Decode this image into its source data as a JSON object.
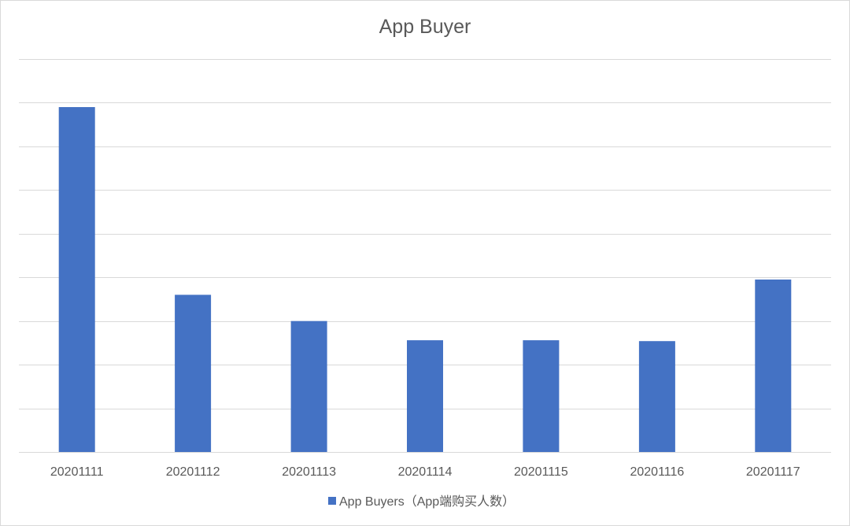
{
  "chart_data": {
    "type": "bar",
    "title": "App Buyer",
    "xlabel": "",
    "ylabel": "",
    "categories": [
      "20201111",
      "20201112",
      "20201113",
      "20201114",
      "20201115",
      "20201116",
      "20201117"
    ],
    "series": [
      {
        "name": "App Buyers（App端购买人数）",
        "values": [
          7.9,
          3.6,
          3.0,
          2.56,
          2.56,
          2.54,
          3.95
        ],
        "color": "#4472c4"
      }
    ],
    "ylim": [
      0,
      9
    ],
    "y_tick_step": 1,
    "y_tick_labels_visible": false,
    "grid": true,
    "legend_position": "bottom"
  }
}
